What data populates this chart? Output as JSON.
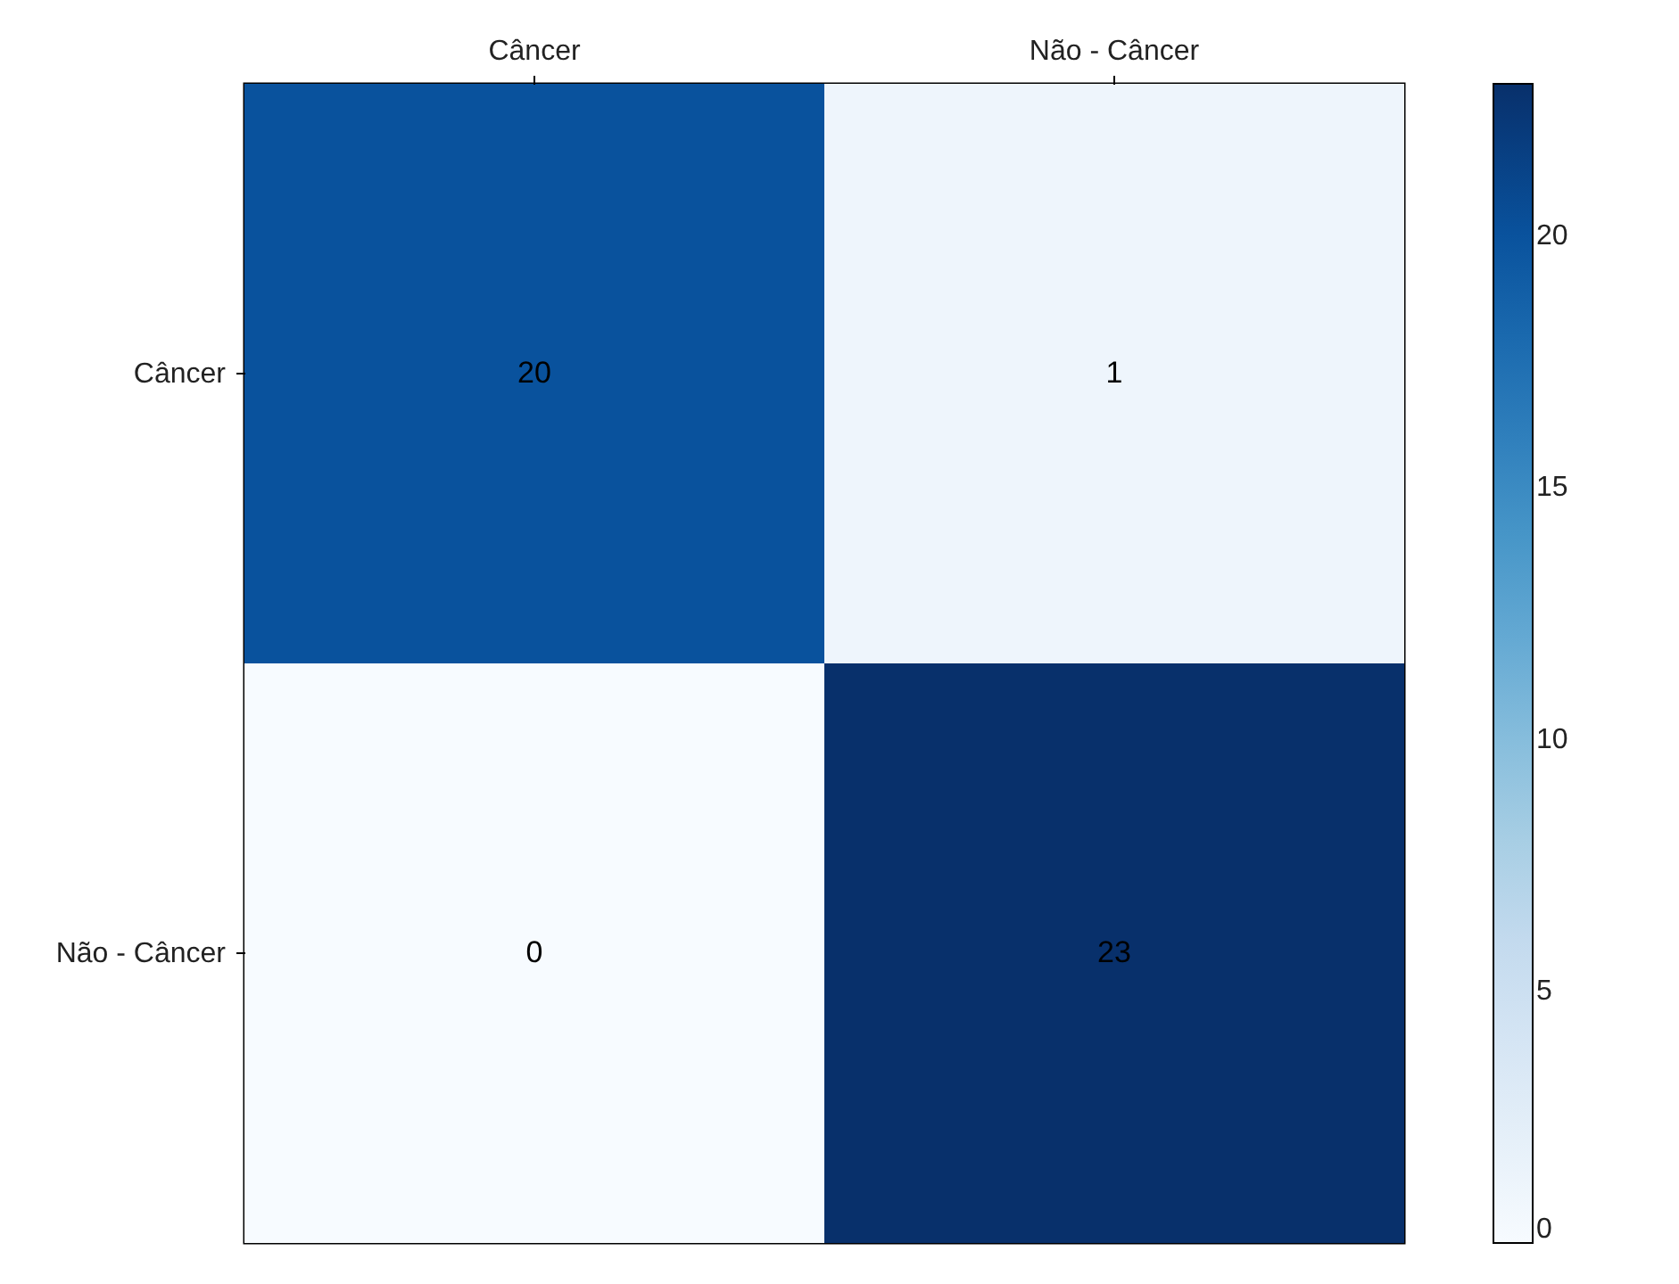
{
  "chart_data": {
    "type": "heatmap",
    "categories": [
      "Câncer",
      "Não - Câncer"
    ],
    "y_categories": [
      "Câncer",
      "Não - Câncer"
    ],
    "cells": [
      [
        20,
        1
      ],
      [
        0,
        23
      ]
    ],
    "clim": [
      0,
      23
    ],
    "cticks": [
      0,
      5,
      10,
      15,
      20
    ],
    "data_labels": true
  }
}
